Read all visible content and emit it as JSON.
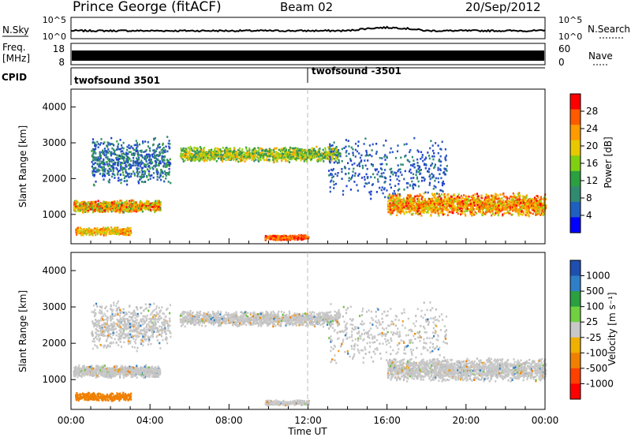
{
  "header": {
    "station": "Prince George (fitACF)",
    "beam": "Beam 02",
    "date": "20/Sep/2012"
  },
  "top_strips": {
    "nsky_label": "N.Sky",
    "nsky_ticks": [
      "10^5",
      "10^0"
    ],
    "nsearch_label": "N.Search",
    "nsearch_ticks": [
      "10^5",
      "10^0"
    ],
    "freq_label_1": "Freq.",
    "freq_label_2": "[MHz]",
    "freq_ticks": [
      "18",
      "8"
    ],
    "nave_label": "Nave",
    "nave_ticks": [
      "60",
      "0"
    ],
    "cpid_label": "CPID",
    "cpid_segments": [
      {
        "label": "twofsound 3501",
        "start_ut": 0.0
      },
      {
        "label": "twofsound -3501",
        "start_ut": 12.0
      }
    ]
  },
  "chart_data": [
    {
      "type": "heatmap",
      "ylabel": "Slant Range [km]",
      "xlabel": "Time UT",
      "xlim": [
        0,
        24
      ],
      "ylim": [
        180,
        4500
      ],
      "y_ticks": [
        1000,
        2000,
        3000,
        4000
      ],
      "x_tick_labels": [
        "00:00",
        "04:00",
        "08:00",
        "12:00",
        "16:00",
        "20:00",
        "00:00"
      ],
      "colorbar": {
        "label": "Power [dB]",
        "ticks": [
          "28",
          "24",
          "20",
          "16",
          "12",
          "8",
          "4"
        ],
        "colors": [
          "#ff0000",
          "#ff5a00",
          "#ff9a00",
          "#e8c800",
          "#80d010",
          "#2aa040",
          "#308a70",
          "#1f5fc0",
          "#0000ff"
        ]
      }
    },
    {
      "type": "heatmap",
      "ylabel": "Slant Range [km]",
      "xlabel": "Time UT",
      "xlim": [
        0,
        24
      ],
      "ylim": [
        180,
        4500
      ],
      "y_ticks": [
        1000,
        2000,
        3000,
        4000
      ],
      "x_tick_labels": [
        "00:00",
        "04:00",
        "08:00",
        "12:00",
        "16:00",
        "20:00",
        "00:00"
      ],
      "colorbar": {
        "label": "Velocity [m s⁻¹]",
        "ticks": [
          "1000",
          "500",
          "100",
          "25",
          "-25",
          "-100",
          "-500",
          "-1000"
        ],
        "colors": [
          "#1f4fb0",
          "#2f7fc8",
          "#2aa040",
          "#70d040",
          "#c8c8c8",
          "#f0b000",
          "#f08000",
          "#ff4000",
          "#ff0000"
        ]
      }
    }
  ]
}
